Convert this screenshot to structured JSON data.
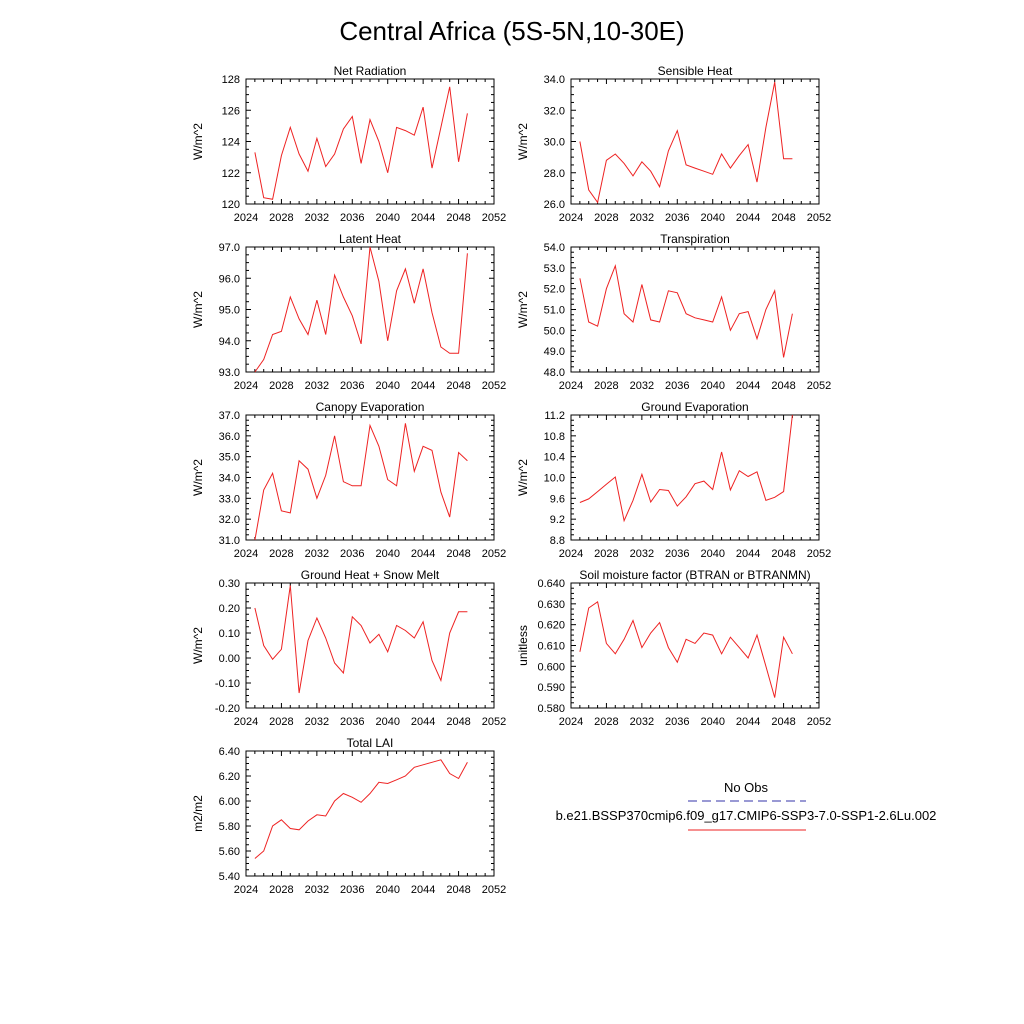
{
  "title": "Central Africa (5S-5N,10-30E)",
  "legend": {
    "obs_label": "No Obs",
    "model_label": "b.e21.BSSP370cmip6.f09_g17.CMIP6-SSP3-7.0-SSP1-2.6Lu.002",
    "obs_color": "#3333aa",
    "model_color": "#ee2222"
  },
  "x_ticks": [
    "2024",
    "2028",
    "2032",
    "2036",
    "2040",
    "2044",
    "2048",
    "2052"
  ],
  "chart_data": [
    {
      "type": "line",
      "title": "Net Radiation",
      "ylabel": "W/m^2",
      "xlim": [
        2024,
        2052
      ],
      "ylim": [
        120,
        128
      ],
      "yticks": [
        "120",
        "122",
        "124",
        "126",
        "128"
      ],
      "series": [
        {
          "x": [
            2025,
            2026,
            2027,
            2028,
            2029,
            2030,
            2031,
            2032,
            2033,
            2034,
            2035,
            2036,
            2037,
            2038,
            2039,
            2040,
            2041,
            2042,
            2043,
            2044,
            2045,
            2046,
            2047,
            2048,
            2049
          ],
          "values": [
            123.3,
            120.4,
            120.3,
            123.1,
            124.9,
            123.2,
            122.1,
            124.2,
            122.4,
            123.2,
            124.8,
            125.6,
            122.6,
            125.4,
            124.0,
            122.0,
            124.9,
            124.7,
            124.4,
            126.2,
            122.3,
            124.9,
            127.5,
            122.7,
            125.8
          ]
        }
      ]
    },
    {
      "type": "line",
      "title": "Sensible Heat",
      "ylabel": "W/m^2",
      "xlim": [
        2024,
        2052
      ],
      "ylim": [
        26,
        34
      ],
      "yticks": [
        "26.0",
        "28.0",
        "30.0",
        "32.0",
        "34.0"
      ],
      "series": [
        {
          "x": [
            2025,
            2026,
            2027,
            2028,
            2029,
            2030,
            2031,
            2032,
            2033,
            2034,
            2035,
            2036,
            2037,
            2038,
            2039,
            2040,
            2041,
            2042,
            2043,
            2044,
            2045,
            2046,
            2047,
            2048,
            2049
          ],
          "values": [
            30.0,
            26.9,
            26.1,
            28.8,
            29.2,
            28.6,
            27.8,
            28.7,
            28.1,
            27.1,
            29.4,
            30.7,
            28.5,
            28.3,
            28.1,
            27.9,
            29.2,
            28.3,
            29.1,
            29.8,
            27.4,
            30.9,
            33.8,
            28.9,
            28.9
          ]
        }
      ]
    },
    {
      "type": "line",
      "title": "Latent Heat",
      "ylabel": "W/m^2",
      "xlim": [
        2024,
        2052
      ],
      "ylim": [
        93,
        97
      ],
      "yticks": [
        "93.0",
        "94.0",
        "95.0",
        "96.0",
        "97.0"
      ],
      "series": [
        {
          "x": [
            2025,
            2026,
            2027,
            2028,
            2029,
            2030,
            2031,
            2032,
            2033,
            2034,
            2035,
            2036,
            2037,
            2038,
            2039,
            2040,
            2041,
            2042,
            2043,
            2044,
            2045,
            2046,
            2047,
            2048,
            2049
          ],
          "values": [
            93.0,
            93.4,
            94.2,
            94.3,
            95.4,
            94.7,
            94.2,
            95.3,
            94.2,
            96.1,
            95.4,
            94.8,
            93.9,
            97.0,
            95.9,
            94.0,
            95.6,
            96.3,
            95.2,
            96.3,
            94.9,
            93.8,
            93.6,
            93.6,
            96.8
          ]
        }
      ]
    },
    {
      "type": "line",
      "title": "Transpiration",
      "ylabel": "W/m^2",
      "xlim": [
        2024,
        2052
      ],
      "ylim": [
        48,
        54
      ],
      "yticks": [
        "48.0",
        "49.0",
        "50.0",
        "51.0",
        "52.0",
        "53.0",
        "54.0"
      ],
      "series": [
        {
          "x": [
            2025,
            2026,
            2027,
            2028,
            2029,
            2030,
            2031,
            2032,
            2033,
            2034,
            2035,
            2036,
            2037,
            2038,
            2039,
            2040,
            2041,
            2042,
            2043,
            2044,
            2045,
            2046,
            2047,
            2048,
            2049
          ],
          "values": [
            52.5,
            50.4,
            50.2,
            52.0,
            53.1,
            50.8,
            50.4,
            52.2,
            50.5,
            50.4,
            51.9,
            51.8,
            50.8,
            50.6,
            50.5,
            50.4,
            51.6,
            50.0,
            50.8,
            50.9,
            49.6,
            51.0,
            51.9,
            48.7,
            50.8
          ]
        }
      ]
    },
    {
      "type": "line",
      "title": "Canopy Evaporation",
      "ylabel": "W/m^2",
      "xlim": [
        2024,
        2052
      ],
      "ylim": [
        31,
        37
      ],
      "yticks": [
        "31.0",
        "32.0",
        "33.0",
        "34.0",
        "35.0",
        "36.0",
        "37.0"
      ],
      "series": [
        {
          "x": [
            2025,
            2026,
            2027,
            2028,
            2029,
            2030,
            2031,
            2032,
            2033,
            2034,
            2035,
            2036,
            2037,
            2038,
            2039,
            2040,
            2041,
            2042,
            2043,
            2044,
            2045,
            2046,
            2047,
            2048,
            2049
          ],
          "values": [
            31.0,
            33.4,
            34.2,
            32.4,
            32.3,
            34.8,
            34.4,
            33.0,
            34.1,
            36.0,
            33.8,
            33.6,
            33.6,
            36.5,
            35.5,
            33.9,
            33.6,
            36.6,
            34.3,
            35.5,
            35.3,
            33.3,
            32.1,
            35.2,
            34.8
          ]
        }
      ]
    },
    {
      "type": "line",
      "title": "Ground Evaporation",
      "ylabel": "W/m^2",
      "xlim": [
        2024,
        2052
      ],
      "ylim": [
        8.8,
        11.2
      ],
      "yticks": [
        "8.8",
        "9.2",
        "9.6",
        "10.0",
        "10.4",
        "10.8",
        "11.2"
      ],
      "series": [
        {
          "x": [
            2025,
            2026,
            2027,
            2028,
            2029,
            2030,
            2031,
            2032,
            2033,
            2034,
            2035,
            2036,
            2037,
            2038,
            2039,
            2040,
            2041,
            2042,
            2043,
            2044,
            2045,
            2046,
            2047,
            2048,
            2049
          ],
          "values": [
            9.52,
            9.59,
            9.73,
            9.87,
            10.01,
            9.17,
            9.56,
            10.06,
            9.53,
            9.77,
            9.75,
            9.45,
            9.63,
            9.88,
            9.93,
            9.77,
            10.49,
            9.76,
            10.13,
            10.02,
            10.11,
            9.56,
            9.62,
            9.73,
            11.2
          ]
        }
      ]
    },
    {
      "type": "line",
      "title": "Ground Heat + Snow Melt",
      "ylabel": "W/m^2",
      "xlim": [
        2024,
        2052
      ],
      "ylim": [
        -0.2,
        0.3
      ],
      "yticks": [
        "-0.20",
        "-0.10",
        "0.00",
        "0.10",
        "0.20",
        "0.30"
      ],
      "series": [
        {
          "x": [
            2025,
            2026,
            2027,
            2028,
            2029,
            2030,
            2031,
            2032,
            2033,
            2034,
            2035,
            2036,
            2037,
            2038,
            2039,
            2040,
            2041,
            2042,
            2043,
            2044,
            2045,
            2046,
            2047,
            2048,
            2049
          ],
          "values": [
            0.2,
            0.05,
            -0.005,
            0.035,
            0.29,
            -0.14,
            0.07,
            0.16,
            0.08,
            -0.02,
            -0.06,
            0.165,
            0.13,
            0.06,
            0.095,
            0.025,
            0.13,
            0.11,
            0.08,
            0.145,
            -0.01,
            -0.09,
            0.1,
            0.185,
            0.185
          ]
        }
      ]
    },
    {
      "type": "line",
      "title": "Soil moisture factor (BTRAN or BTRANMN)",
      "ylabel": "unitless",
      "xlim": [
        2024,
        2052
      ],
      "ylim": [
        0.58,
        0.64
      ],
      "yticks": [
        "0.580",
        "0.590",
        "0.600",
        "0.610",
        "0.620",
        "0.630",
        "0.640"
      ],
      "series": [
        {
          "x": [
            2025,
            2026,
            2027,
            2028,
            2029,
            2030,
            2031,
            2032,
            2033,
            2034,
            2035,
            2036,
            2037,
            2038,
            2039,
            2040,
            2041,
            2042,
            2043,
            2044,
            2045,
            2046,
            2047,
            2048,
            2049
          ],
          "values": [
            0.607,
            0.628,
            0.631,
            0.611,
            0.606,
            0.613,
            0.622,
            0.609,
            0.616,
            0.621,
            0.609,
            0.602,
            0.613,
            0.611,
            0.616,
            0.615,
            0.606,
            0.614,
            0.609,
            0.604,
            0.615,
            0.6,
            0.585,
            0.614,
            0.606
          ]
        }
      ]
    },
    {
      "type": "line",
      "title": "Total LAI",
      "ylabel": "m2/m2",
      "xlim": [
        2024,
        2052
      ],
      "ylim": [
        5.4,
        6.4
      ],
      "yticks": [
        "5.40",
        "5.60",
        "5.80",
        "6.00",
        "6.20",
        "6.40"
      ],
      "series": [
        {
          "x": [
            2025,
            2026,
            2027,
            2028,
            2029,
            2030,
            2031,
            2032,
            2033,
            2034,
            2035,
            2036,
            2037,
            2038,
            2039,
            2040,
            2041,
            2042,
            2043,
            2044,
            2045,
            2046,
            2047,
            2048,
            2049
          ],
          "values": [
            5.54,
            5.6,
            5.8,
            5.85,
            5.78,
            5.77,
            5.84,
            5.89,
            5.88,
            6.0,
            6.06,
            6.03,
            5.99,
            6.06,
            6.15,
            6.14,
            6.17,
            6.2,
            6.27,
            6.29,
            6.31,
            6.33,
            6.22,
            6.18,
            6.31
          ]
        }
      ]
    }
  ]
}
